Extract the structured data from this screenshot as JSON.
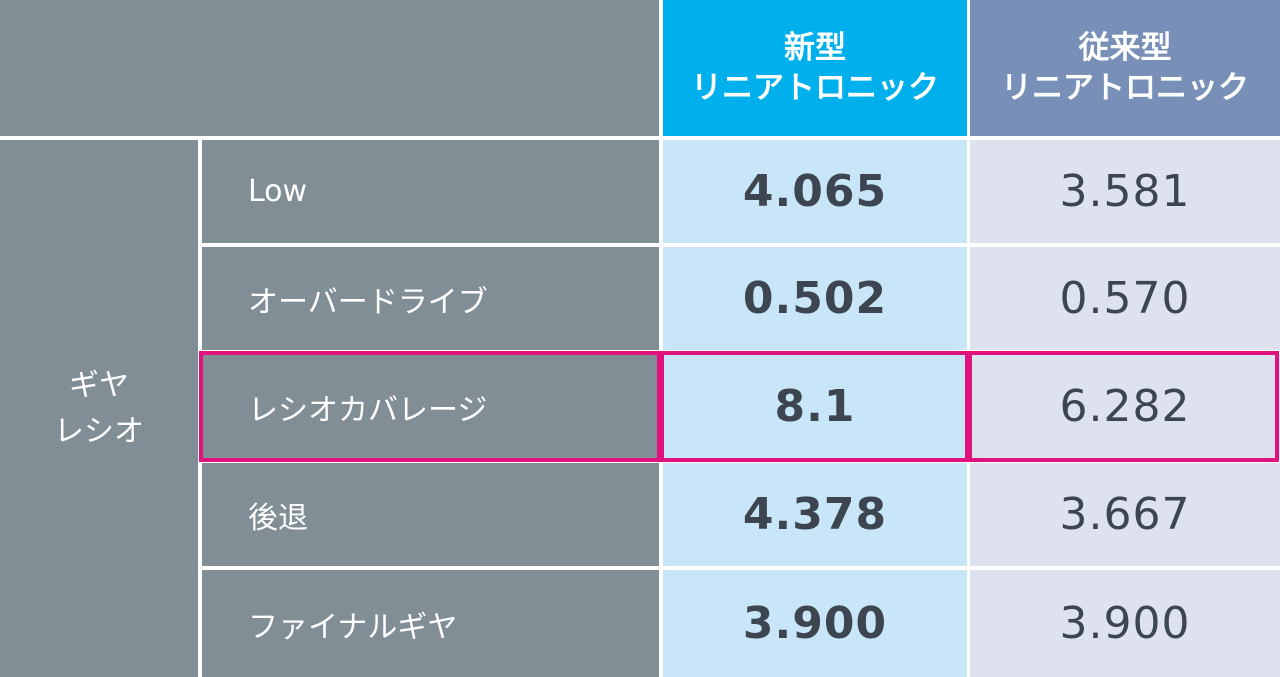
{
  "chart_data": {
    "type": "table",
    "header": {
      "new_line1": "新型",
      "new_line2": "リニアトロニック",
      "old_line1": "従来型",
      "old_line2": "リニアトロニック"
    },
    "group_label": {
      "line1": "ギヤ",
      "line2": "レシオ"
    },
    "rows": [
      {
        "label": "Low",
        "new": "4.065",
        "old": "3.581"
      },
      {
        "label": "オーバードライブ",
        "new": "0.502",
        "old": "0.570"
      },
      {
        "label": "レシオカバレージ",
        "new": "8.1",
        "old": "6.282"
      },
      {
        "label": "後退",
        "new": "4.378",
        "old": "3.667"
      },
      {
        "label": "ファイナルギヤ",
        "new": "3.900",
        "old": "3.900"
      }
    ],
    "highlighted_row": "レシオカバレージ",
    "colors": {
      "gray": "#818e96",
      "new_header": "#00b0ec",
      "old_header": "#7890b8",
      "new_cell": "#c8e6f8",
      "old_cell": "#dde2ee",
      "highlight": "#e0127e"
    }
  }
}
